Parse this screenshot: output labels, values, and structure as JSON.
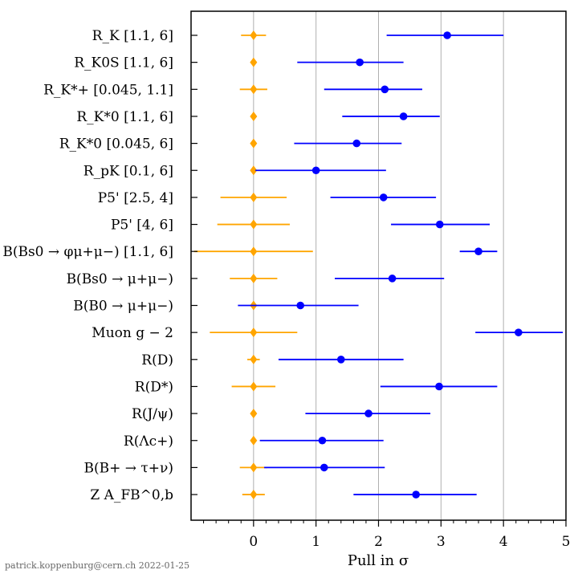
{
  "chart_data": {
    "type": "errorbar",
    "xlabel": "Pull in σ",
    "xlim": [
      -1,
      5
    ],
    "xticks": [
      "0",
      "1",
      "2",
      "3",
      "4",
      "5"
    ],
    "grid": "vertical",
    "colors": {
      "reference": "#FFA500",
      "measurement": "#0000FF"
    },
    "rows": [
      {
        "label": "R_K [1.1, 6]",
        "value": 3.1,
        "lo": 2.13,
        "hi": 4.0,
        "ref_err": 0.2
      },
      {
        "label": "R_K0S [1.1, 6]",
        "value": 1.7,
        "lo": 0.7,
        "hi": 2.4,
        "ref_err": 0.05
      },
      {
        "label": "R_K*+ [0.045, 1.1]",
        "value": 2.1,
        "lo": 1.13,
        "hi": 2.7,
        "ref_err": 0.22
      },
      {
        "label": "R_K*0 [1.1, 6]",
        "value": 2.4,
        "lo": 1.42,
        "hi": 2.98,
        "ref_err": 0.05
      },
      {
        "label": "R_K*0 [0.045, 6]",
        "value": 1.65,
        "lo": 0.65,
        "hi": 2.37,
        "ref_err": 0.03
      },
      {
        "label": "R_pK [0.1, 6]",
        "value": 1.0,
        "lo": 0.03,
        "hi": 2.12,
        "ref_err": 0.04
      },
      {
        "label": "P5' [2.5, 4]",
        "value": 2.08,
        "lo": 1.23,
        "hi": 2.92,
        "ref_err": 0.53
      },
      {
        "label": "P5' [4, 6]",
        "value": 2.98,
        "lo": 2.2,
        "hi": 3.78,
        "ref_err": 0.58
      },
      {
        "label": "B(Bs0 → φμ+μ−) [1.1, 6]",
        "value": 3.6,
        "lo": 3.3,
        "hi": 3.9,
        "ref_err": 0.95
      },
      {
        "label": "B(Bs0 → μ+μ−)",
        "value": 2.22,
        "lo": 1.3,
        "hi": 3.05,
        "ref_err": 0.38
      },
      {
        "label": "B(B0 → μ+μ−)",
        "value": 0.75,
        "lo": -0.25,
        "hi": 1.68,
        "ref_err": 0.03
      },
      {
        "label": "Muon g − 2",
        "value": 4.24,
        "lo": 3.55,
        "hi": 4.95,
        "ref_err": 0.7
      },
      {
        "label": "R(D)",
        "value": 1.4,
        "lo": 0.4,
        "hi": 2.4,
        "ref_err": 0.1
      },
      {
        "label": "R(D*)",
        "value": 2.97,
        "lo": 2.03,
        "hi": 3.9,
        "ref_err": 0.35
      },
      {
        "label": "R(J/ψ)",
        "value": 1.84,
        "lo": 0.83,
        "hi": 2.83,
        "ref_err": 0.03
      },
      {
        "label": "R(Λc+)",
        "value": 1.1,
        "lo": 0.1,
        "hi": 2.08,
        "ref_err": 0.03
      },
      {
        "label": "B(B+ → τ+ν)",
        "value": 1.13,
        "lo": 0.17,
        "hi": 2.1,
        "ref_err": 0.22
      },
      {
        "label": "Z A_FB^0,b",
        "value": 2.6,
        "lo": 1.6,
        "hi": 3.57,
        "ref_err": 0.18
      }
    ]
  },
  "footer": "patrick.koppenburg@cern.ch 2022-01-25"
}
